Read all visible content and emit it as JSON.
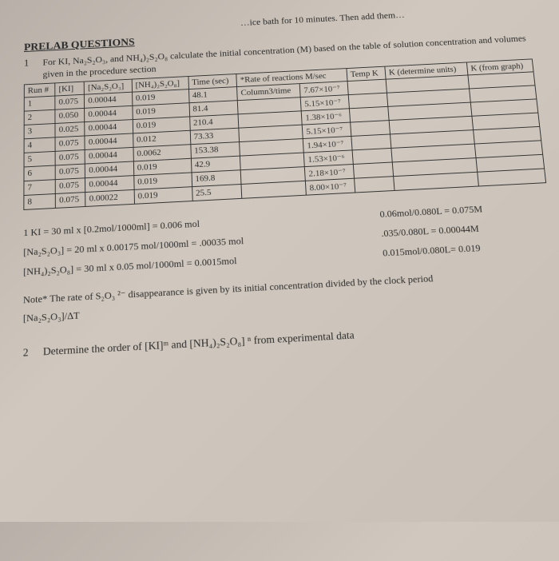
{
  "topcut": "…ice bath for 10 minutes. Then add them…",
  "heading": "PRELAB QUESTIONS",
  "q1_num": "1",
  "q1_text": "For KI, Na₂S₂O₃, and NH₄)₂S₂O₈  calculate the initial concentration (M) based on the table of solution concentration and volumes given in the procedure section",
  "headers": {
    "run": "Run #",
    "ki": "[KI]",
    "na": "[Na₂S₂O₃]",
    "nh": "[NH₄)₂S₂O₈]",
    "time": "Time (sec)",
    "rate": "*Rate of reactions M/sec",
    "temp": "Temp K",
    "kdet": "K (determine units)",
    "kgraph": "K (from graph)"
  },
  "rows": [
    {
      "n": "1",
      "ki": "0.075",
      "na": "0.00044",
      "nh": "0.019",
      "t": "48.1",
      "rate": "Column3/time",
      "hw": "7.67×10⁻⁷"
    },
    {
      "n": "2",
      "ki": "0.050",
      "na": "0.00044",
      "nh": "0.019",
      "t": "81.4",
      "rate": "",
      "hw": "5.15×10⁻⁷"
    },
    {
      "n": "3",
      "ki": "0.025",
      "na": "0.00044",
      "nh": "0.019",
      "t": "210.4",
      "rate": "",
      "hw": "1.38×10⁻⁶"
    },
    {
      "n": "4",
      "ki": "0.075",
      "na": "0.00044",
      "nh": "0.012",
      "t": "73.33",
      "rate": "",
      "hw": "5.15×10⁻⁷"
    },
    {
      "n": "5",
      "ki": "0.075",
      "na": "0.00044",
      "nh": "0.0062",
      "t": "153.38",
      "rate": "",
      "hw": "1.94×10⁻⁷"
    },
    {
      "n": "6",
      "ki": "0.075",
      "na": "0.00044",
      "nh": "0.019",
      "t": "42.9",
      "rate": "",
      "hw": "1.53×10⁻⁶"
    },
    {
      "n": "7",
      "ki": "0.075",
      "na": "0.00044",
      "nh": "0.019",
      "t": "169.8",
      "rate": "",
      "hw": "2.18×10⁻⁷"
    },
    {
      "n": "8",
      "ki": "0.075",
      "na": "0.00022",
      "nh": "0.019",
      "t": "25.5",
      "rate": "",
      "hw": "8.00×10⁻⁷"
    }
  ],
  "calc": {
    "l1_left_label": "1        KI = 30 ml x [0.2mol/1000ml] = 0.006 mol",
    "l1_right": "0.06mol/0.080L = 0.075M",
    "l2_left": "[Na₂S₂O₃] = 20 ml x 0.00175 mol/1000ml = .00035 mol",
    "l2_right": ".035/0.080L = 0.00044M",
    "l3_left": "[NH₄)₂S₂O₈]  = 30 ml x 0.05 mol/1000ml = 0.0015mol",
    "l3_right": "0.015mol/0.080L= 0.019"
  },
  "note1": "Note*  The rate of S₂O₃ ²⁻ disappearance is given by its initial concentration divided by the clock period",
  "note2": "[Na₂S₂O₃]/ΔT",
  "q2_num": "2",
  "q2_text": "Determine the order of [KI]ᵐ and [NH₄)₂S₂O₈] ⁿ from experimental data"
}
